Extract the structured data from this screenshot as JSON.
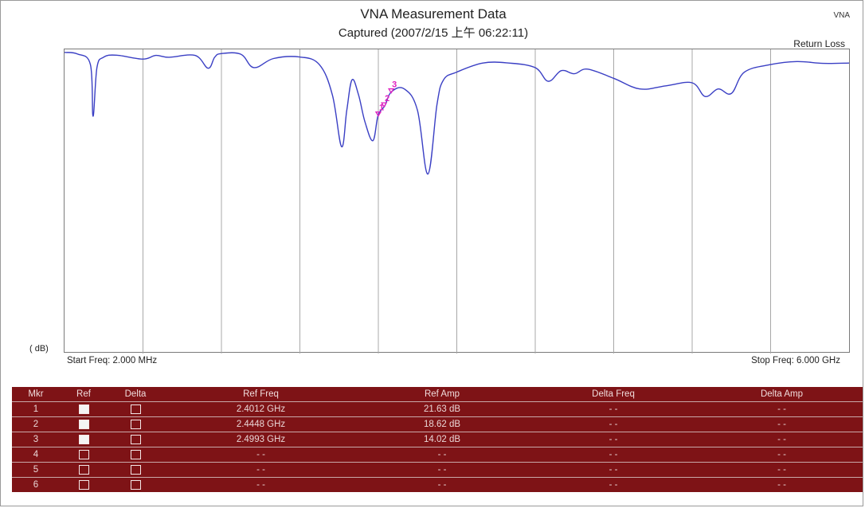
{
  "header": {
    "title": "VNA Measurement Data",
    "subtitle": "Captured  (2007/2/15 上午 06:22:11)",
    "tag": "VNA",
    "trace_label": "Return Loss"
  },
  "plot": {
    "unit_label": "( dB)",
    "start_freq": "Start Freq: 2.000 MHz",
    "stop_freq": "Stop Freq: 6.000 GHz",
    "trace_color": "#3a3fc4",
    "marker_color": "#e020c0",
    "grid_color": "#a8a8a8",
    "markers": [
      {
        "label": "1",
        "freq_ghz": 2.4012,
        "amp_db": 21.63
      },
      {
        "label": "2",
        "freq_ghz": 2.4448,
        "amp_db": 18.62
      },
      {
        "label": "3",
        "freq_ghz": 2.4993,
        "amp_db": 14.02
      }
    ]
  },
  "chart_data": {
    "type": "line",
    "title": "VNA Measurement Data",
    "x_unit": "GHz",
    "y_unit": "dB",
    "xlim": [
      0.002,
      6.0
    ],
    "grid": true,
    "series": [
      {
        "name": "Return Loss",
        "x": [
          0.002,
          0.1,
          0.2,
          0.22,
          0.25,
          0.3,
          0.4,
          0.6,
          0.7,
          0.8,
          1.0,
          1.1,
          1.15,
          1.2,
          1.35,
          1.45,
          1.6,
          1.8,
          1.95,
          2.05,
          2.12,
          2.16,
          2.2,
          2.25,
          2.3,
          2.36,
          2.4,
          2.45,
          2.5,
          2.6,
          2.7,
          2.78,
          2.85,
          2.9,
          3.0,
          3.2,
          3.4,
          3.6,
          3.7,
          3.8,
          3.9,
          4.0,
          4.2,
          4.4,
          4.6,
          4.8,
          4.9,
          5.0,
          5.1,
          5.2,
          5.4,
          5.6,
          5.8,
          6.0
        ],
        "y": [
          1.0,
          1.5,
          5.0,
          22.0,
          6.0,
          2.6,
          1.9,
          3.2,
          2.0,
          2.6,
          2.0,
          6.2,
          2.6,
          1.4,
          1.6,
          6.0,
          3.0,
          2.5,
          5.0,
          15.0,
          32.0,
          20.0,
          10.0,
          15.0,
          24.0,
          30.0,
          21.6,
          18.6,
          14.0,
          13.0,
          20.0,
          41.0,
          18.0,
          10.0,
          7.5,
          4.5,
          4.5,
          6.0,
          10.5,
          7.0,
          8.0,
          6.5,
          9.5,
          13.0,
          12.0,
          11.0,
          15.5,
          13.0,
          14.5,
          7.5,
          5.0,
          4.0,
          4.6,
          4.5
        ]
      }
    ]
  },
  "table": {
    "headers": [
      "Mkr",
      "Ref",
      "Delta",
      "Ref Freq",
      "Ref Amp",
      "Delta Freq",
      "Delta Amp"
    ],
    "rows": [
      {
        "mkr": "1",
        "ref_on": true,
        "delta_on": false,
        "ref_freq": "2.4012 GHz",
        "ref_amp": "21.63 dB",
        "delta_freq": "- -",
        "delta_amp": "- -"
      },
      {
        "mkr": "2",
        "ref_on": true,
        "delta_on": false,
        "ref_freq": "2.4448 GHz",
        "ref_amp": "18.62 dB",
        "delta_freq": "- -",
        "delta_amp": "- -"
      },
      {
        "mkr": "3",
        "ref_on": true,
        "delta_on": false,
        "ref_freq": "2.4993 GHz",
        "ref_amp": "14.02 dB",
        "delta_freq": "- -",
        "delta_amp": "- -"
      },
      {
        "mkr": "4",
        "ref_on": false,
        "delta_on": false,
        "ref_freq": "- -",
        "ref_amp": "- -",
        "delta_freq": "- -",
        "delta_amp": "- -"
      },
      {
        "mkr": "5",
        "ref_on": false,
        "delta_on": false,
        "ref_freq": "- -",
        "ref_amp": "- -",
        "delta_freq": "- -",
        "delta_amp": "- -"
      },
      {
        "mkr": "6",
        "ref_on": false,
        "delta_on": false,
        "ref_freq": "- -",
        "ref_amp": "- -",
        "delta_freq": "- -",
        "delta_amp": "- -"
      }
    ]
  }
}
